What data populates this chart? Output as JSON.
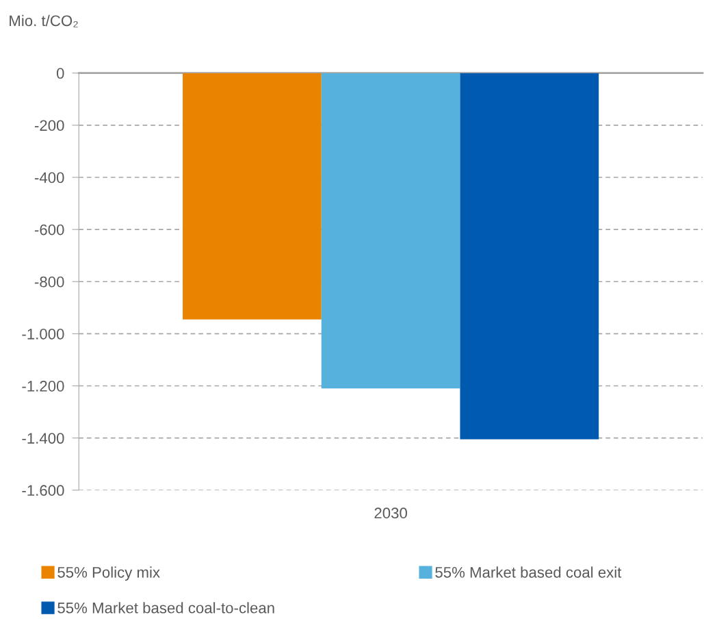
{
  "chart_data": {
    "type": "bar",
    "ylabel": "Mio. t/CO₂",
    "categories": [
      "2030"
    ],
    "series": [
      {
        "name": "55% Policy mix",
        "color": "#e98300",
        "values": [
          -945
        ]
      },
      {
        "name": "55% Market based coal exit",
        "color": "#57b1dd",
        "values": [
          -1210
        ]
      },
      {
        "name": "55% Market based coal-to-clean",
        "color": "#005aaf",
        "values": [
          -1405
        ]
      }
    ],
    "ylim": [
      -1600,
      0
    ],
    "yticks": [
      0,
      {
        "value": -200,
        "label": "-200"
      },
      {
        "value": -400,
        "label": "-400"
      },
      {
        "value": -600,
        "label": "-600"
      },
      {
        "value": -800,
        "label": "-800"
      },
      {
        "value": -1000,
        "label": "-1.000"
      },
      {
        "value": -1200,
        "label": "-1.200"
      },
      {
        "value": -1400,
        "label": "-1.400"
      },
      {
        "value": -1600,
        "label": "-1.600"
      }
    ],
    "grid": "y",
    "legend": "bottom"
  }
}
